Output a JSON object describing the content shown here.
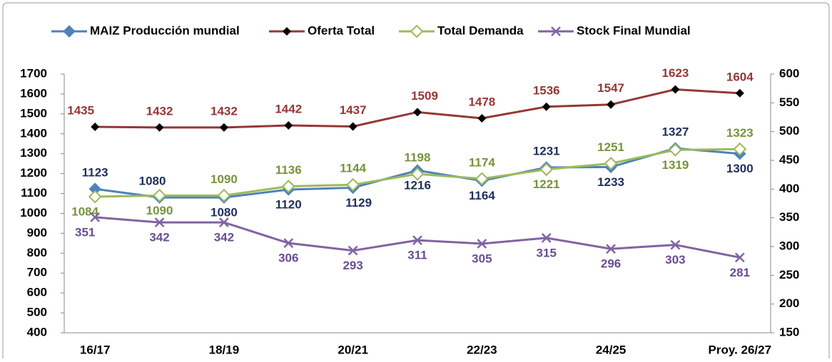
{
  "chart_data": {
    "type": "line",
    "categories": [
      "16/17",
      null,
      "18/19",
      null,
      "20/21",
      null,
      "22/23",
      null,
      "24/25",
      null,
      "Proy. 26/27"
    ],
    "series": [
      {
        "name": "MAIZ Producción mundial",
        "color": "#4f81bd",
        "label_color": "#1f2f5c",
        "marker": "diamond",
        "values": [
          1123,
          1080,
          1080,
          1120,
          1129,
          1216,
          1164,
          1231,
          1233,
          1327,
          1300
        ]
      },
      {
        "name": "Oferta Total",
        "color": "#953735",
        "label_color": "#953735",
        "marker": "diamond-black",
        "values": [
          1435,
          1432,
          1432,
          1442,
          1437,
          1509,
          1478,
          1536,
          1547,
          1623,
          1604
        ]
      },
      {
        "name": "Total Demanda",
        "color": "#9bbb59",
        "label_color": "#77933c",
        "marker": "diamond-open",
        "values": [
          1084,
          1090,
          1090,
          1136,
          1144,
          1198,
          1174,
          1221,
          1251,
          1319,
          1323
        ]
      },
      {
        "name": "Stock Final Mundial",
        "color": "#8064a2",
        "label_color": "#6a4c93",
        "marker": "x",
        "axis": "y2",
        "values": [
          351,
          342,
          342,
          306,
          293,
          311,
          305,
          315,
          296,
          303,
          281
        ]
      }
    ],
    "ylim": [
      400,
      1700
    ],
    "yticks": [
      400,
      500,
      600,
      700,
      800,
      900,
      1000,
      1100,
      1200,
      1300,
      1400,
      1500,
      1600,
      1700
    ],
    "y2lim": [
      150,
      600
    ],
    "y2ticks": [
      150,
      200,
      250,
      300,
      350,
      400,
      450,
      500,
      550,
      600
    ],
    "legend": "top"
  }
}
